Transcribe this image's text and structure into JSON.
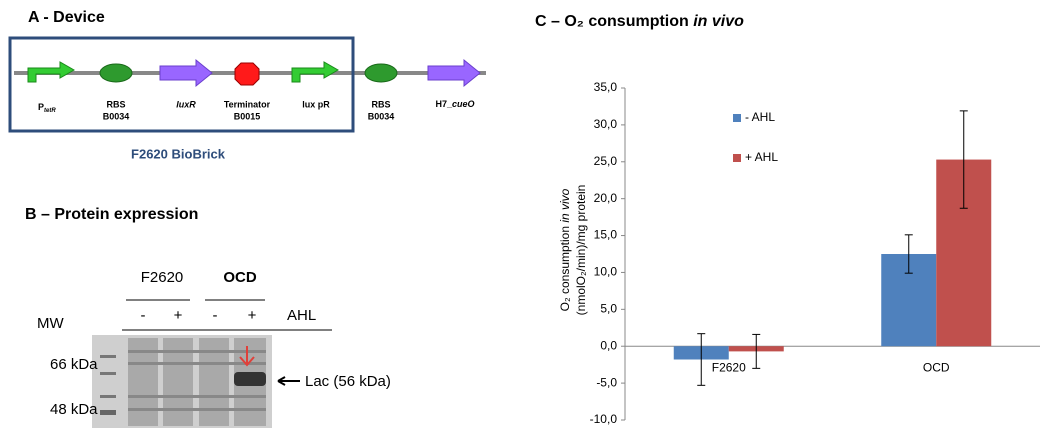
{
  "device": {
    "title": "A - Device",
    "parts": [
      {
        "label": [
          "P",
          "tetR"
        ]
      },
      {
        "label": [
          "RBS",
          "B0034"
        ]
      },
      {
        "label": [
          "luxR"
        ]
      },
      {
        "label": [
          "Terminator",
          "B0015"
        ]
      },
      {
        "label": [
          "lux pR"
        ]
      },
      {
        "label": [
          "RBS",
          "B0034"
        ]
      },
      {
        "label": [
          "H7_",
          "cueO"
        ]
      }
    ],
    "caption": "F2620 BioBrick"
  },
  "gel": {
    "title": "B – Protein expression",
    "groups": [
      "F2620",
      "OCD"
    ],
    "lanes": [
      "-",
      "+",
      "-",
      "+"
    ],
    "treatment": "AHL",
    "mw_label": "MW",
    "markers": [
      "66 kDa",
      "48 kDa"
    ],
    "band_label": "Lac (56 kDa)"
  },
  "chart_data": {
    "type": "bar",
    "title": [
      "C – O₂ consumption",
      "in vivo"
    ],
    "y_label": [
      "O₂ consumption",
      "in vivo",
      "(nmolO₂/min)/mg protein"
    ],
    "categories": [
      "F2620",
      "OCD"
    ],
    "series": [
      {
        "name": "- AHL",
        "color": "#4f81bd",
        "values": [
          -1.8,
          12.5
        ],
        "errors": [
          3.5,
          2.6
        ]
      },
      {
        "name": "+ AHL",
        "color": "#c0504d",
        "values": [
          -0.7,
          25.3
        ],
        "errors": [
          2.3,
          6.6
        ]
      }
    ],
    "ylim": [
      -10,
      35
    ],
    "yticks": [
      {
        "value": -10,
        "label": "-10,0"
      },
      {
        "value": -5,
        "label": "-5,0"
      },
      {
        "value": 0,
        "label": "0,0"
      },
      {
        "value": 5,
        "label": "5,0"
      },
      {
        "value": 10,
        "label": "10,0"
      },
      {
        "value": 15,
        "label": "15,0"
      },
      {
        "value": 20,
        "label": "20,0"
      },
      {
        "value": 25,
        "label": "25,0"
      },
      {
        "value": 30,
        "label": "30,0"
      },
      {
        "value": 35,
        "label": "35,0"
      }
    ],
    "grid": false
  }
}
